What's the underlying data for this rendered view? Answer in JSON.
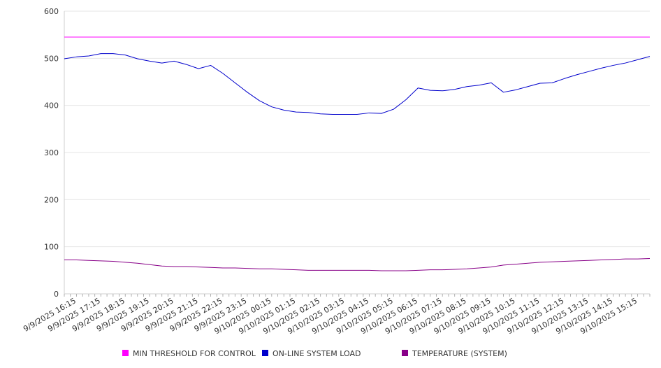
{
  "chart_data": {
    "type": "line",
    "ylim": [
      0,
      600
    ],
    "yticks": [
      0,
      100,
      200,
      300,
      400,
      500,
      600
    ],
    "x_range": [
      "9/9/2025 15:45",
      "9/10/2025 15:45"
    ],
    "x_tick_labels": [
      "9/9/2025 16:15",
      "9/9/2025 17:15",
      "9/9/2025 18:15",
      "9/9/2025 19:15",
      "9/9/2025 20:15",
      "9/9/2025 21:15",
      "9/9/2025 22:15",
      "9/9/2025 23:15",
      "9/10/2025 00:15",
      "9/10/2025 01:15",
      "9/10/2025 02:15",
      "9/10/2025 03:15",
      "9/10/2025 04:15",
      "9/10/2025 05:15",
      "9/10/2025 06:15",
      "9/10/2025 07:15",
      "9/10/2025 08:15",
      "9/10/2025 09:15",
      "9/10/2025 10:15",
      "9/10/2025 11:15",
      "9/10/2025 12:15",
      "9/10/2025 13:15",
      "9/10/2025 14:15",
      "9/10/2025 15:15"
    ],
    "grid": true,
    "legend_position": "bottom",
    "x": [
      "9/9/2025 15:45",
      "9/9/2025 16:15",
      "9/9/2025 16:45",
      "9/9/2025 17:15",
      "9/9/2025 17:45",
      "9/9/2025 18:15",
      "9/9/2025 18:45",
      "9/9/2025 19:15",
      "9/9/2025 19:45",
      "9/9/2025 20:15",
      "9/9/2025 20:45",
      "9/9/2025 21:15",
      "9/9/2025 21:45",
      "9/9/2025 22:15",
      "9/9/2025 22:45",
      "9/9/2025 23:15",
      "9/9/2025 23:45",
      "9/10/2025 00:15",
      "9/10/2025 00:45",
      "9/10/2025 01:15",
      "9/10/2025 01:45",
      "9/10/2025 02:15",
      "9/10/2025 02:45",
      "9/10/2025 03:15",
      "9/10/2025 03:45",
      "9/10/2025 04:15",
      "9/10/2025 04:45",
      "9/10/2025 05:15",
      "9/10/2025 05:45",
      "9/10/2025 06:15",
      "9/10/2025 06:45",
      "9/10/2025 07:15",
      "9/10/2025 07:45",
      "9/10/2025 08:15",
      "9/10/2025 08:45",
      "9/10/2025 09:15",
      "9/10/2025 09:45",
      "9/10/2025 10:15",
      "9/10/2025 10:45",
      "9/10/2025 11:15",
      "9/10/2025 11:45",
      "9/10/2025 12:15",
      "9/10/2025 12:45",
      "9/10/2025 13:15",
      "9/10/2025 13:45",
      "9/10/2025 14:15",
      "9/10/2025 14:45",
      "9/10/2025 15:15",
      "9/10/2025 15:45"
    ],
    "series": [
      {
        "name": "MIN THRESHOLD FOR CONTROL",
        "color": "#ff00ff",
        "values": [
          545,
          545,
          545,
          545,
          545,
          545,
          545,
          545,
          545,
          545,
          545,
          545,
          545,
          545,
          545,
          545,
          545,
          545,
          545,
          545,
          545,
          545,
          545,
          545,
          545,
          545,
          545,
          545,
          545,
          545,
          545,
          545,
          545,
          545,
          545,
          545,
          545,
          545,
          545,
          545,
          545,
          545,
          545,
          545,
          545,
          545,
          545,
          545,
          545
        ]
      },
      {
        "name": "ON-LINE SYSTEM LOAD",
        "color": "#0000cc",
        "values": [
          499,
          503,
          505,
          510,
          510,
          507,
          499,
          494,
          490,
          494,
          487,
          478,
          485,
          468,
          448,
          428,
          410,
          397,
          390,
          386,
          385,
          382,
          381,
          381,
          381,
          384,
          383,
          392,
          412,
          437,
          432,
          431,
          434,
          440,
          443,
          448,
          428,
          433,
          440,
          447,
          448,
          457,
          465,
          472,
          479,
          485,
          490,
          497,
          504
        ]
      },
      {
        "name": "TEMPERATURE (SYSTEM)",
        "color": "#880088",
        "values": [
          72,
          72,
          71,
          70,
          69,
          67,
          65,
          62,
          59,
          58,
          58,
          57,
          56,
          55,
          55,
          54,
          53,
          53,
          52,
          51,
          50,
          50,
          50,
          50,
          50,
          50,
          49,
          49,
          49,
          50,
          51,
          51,
          52,
          53,
          55,
          57,
          61,
          63,
          65,
          67,
          68,
          69,
          70,
          71,
          72,
          73,
          74,
          74,
          75
        ]
      }
    ]
  }
}
